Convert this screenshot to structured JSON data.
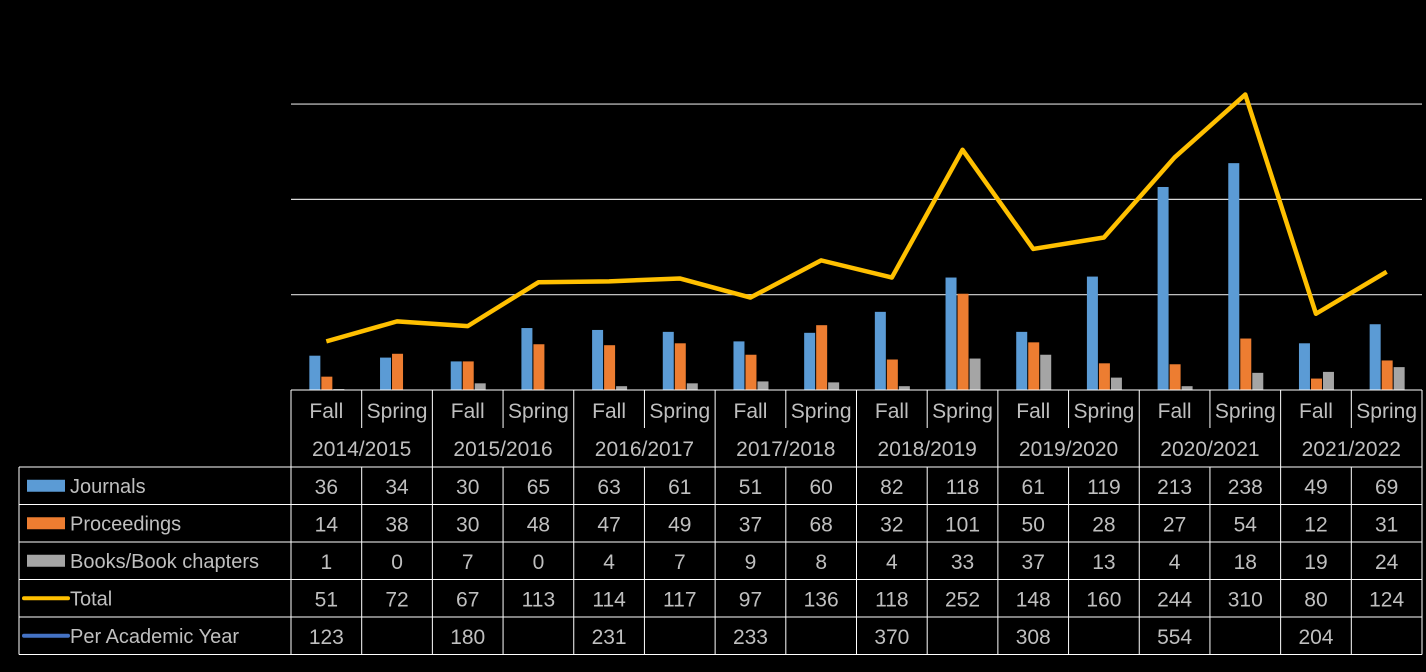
{
  "chart_data": {
    "type": "bar",
    "title": "",
    "xlabel": "",
    "ylabel": "",
    "ylim": [
      0,
      320
    ],
    "grid": true,
    "legend": "data-table-left",
    "semesters": [
      "Fall",
      "Spring",
      "Fall",
      "Spring",
      "Fall",
      "Spring",
      "Fall",
      "Spring",
      "Fall",
      "Spring",
      "Fall",
      "Spring",
      "Fall",
      "Spring",
      "Fall",
      "Spring"
    ],
    "years": [
      "2014/2015",
      "2015/2016",
      "2016/2017",
      "2017/2018",
      "2018/2019",
      "2019/2020",
      "2020/2021",
      "2021/2022"
    ],
    "series": [
      {
        "name": "Journals",
        "kind": "bar",
        "color": "#5b9bd5",
        "values": [
          36,
          34,
          30,
          65,
          63,
          61,
          51,
          60,
          82,
          118,
          61,
          119,
          213,
          238,
          49,
          69
        ]
      },
      {
        "name": "Proceedings",
        "kind": "bar",
        "color": "#ed7d31",
        "values": [
          14,
          38,
          30,
          48,
          47,
          49,
          37,
          68,
          32,
          101,
          50,
          28,
          27,
          54,
          12,
          31
        ]
      },
      {
        "name": "Books/Book chapters",
        "kind": "bar",
        "color": "#a5a5a5",
        "values": [
          1,
          0,
          7,
          0,
          4,
          7,
          9,
          8,
          4,
          33,
          37,
          13,
          4,
          18,
          19,
          24
        ]
      },
      {
        "name": "Total",
        "kind": "line",
        "color": "#ffc000",
        "values": [
          51,
          72,
          67,
          113,
          114,
          117,
          97,
          136,
          118,
          252,
          148,
          160,
          244,
          310,
          80,
          124
        ]
      },
      {
        "name": "Per Academic Year",
        "kind": "table-only",
        "color": "#4472c4",
        "values": [
          123,
          null,
          180,
          null,
          231,
          null,
          233,
          null,
          370,
          null,
          308,
          null,
          554,
          null,
          204,
          null
        ]
      }
    ]
  }
}
